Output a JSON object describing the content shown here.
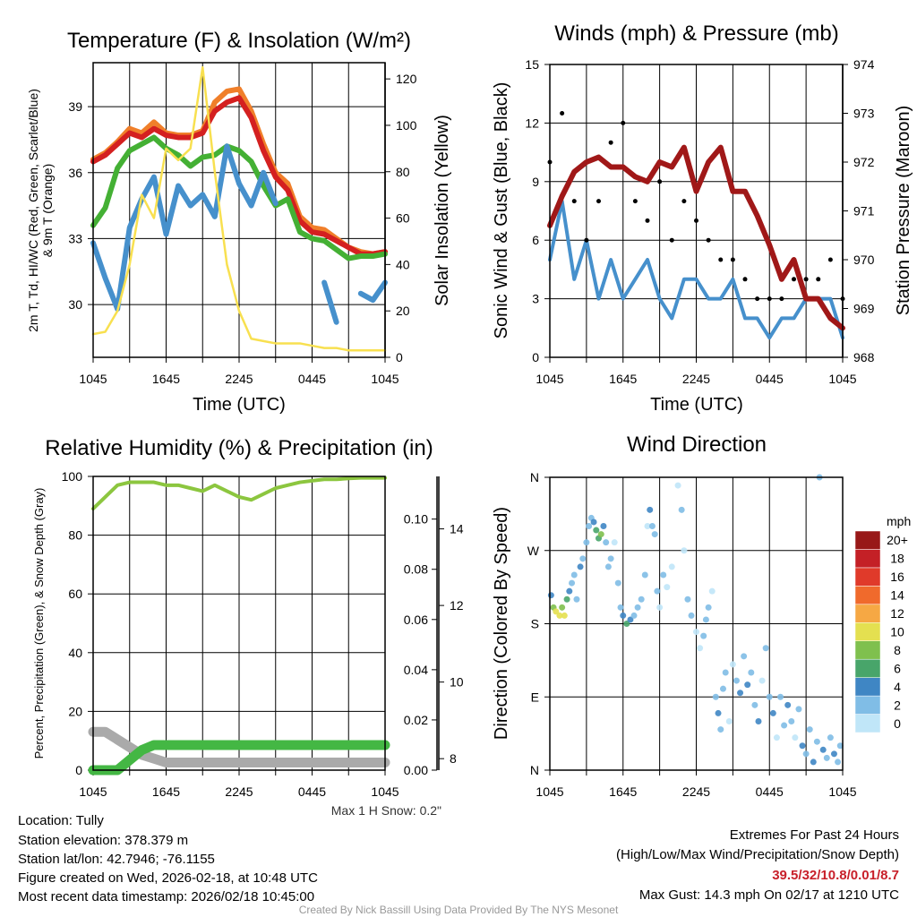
{
  "chart_data": [
    {
      "id": "temperature",
      "type": "line",
      "title": "Temperature (F) & Insolation (W/m²)",
      "ylabel": "2m T, Td, HI/WC (Red, Green, Scarlet/Blue)",
      "ylabel2": "& 9m T (Orange)",
      "y2label": "Solar Insolation (Yellow)",
      "xlabel": "Time (UTC)",
      "x_ticks": [
        "1045",
        "1645",
        "2245",
        "0445",
        "1045"
      ],
      "y_ticks": [
        30,
        33,
        36,
        39
      ],
      "y2_ticks": [
        0,
        20,
        40,
        60,
        80,
        100,
        120
      ],
      "ylim": [
        27.6,
        41
      ],
      "y2lim": [
        0,
        127
      ],
      "x_hours": [
        0,
        1,
        2,
        3,
        4,
        5,
        6,
        7,
        8,
        9,
        10,
        11,
        12,
        13,
        14,
        15,
        16,
        17,
        18,
        19,
        20,
        21,
        22,
        23,
        24
      ],
      "series": [
        {
          "name": "9m T",
          "color": "#f07f2a",
          "axis": "left",
          "values": [
            36.6,
            36.9,
            37.4,
            38.0,
            37.8,
            38.3,
            37.8,
            37.7,
            37.7,
            37.9,
            39.2,
            39.7,
            39.8,
            38.8,
            37.3,
            36.0,
            35.5,
            34.0,
            33.5,
            33.4,
            33.0,
            32.6,
            32.4,
            32.3,
            32.4
          ]
        },
        {
          "name": "2m T",
          "color": "#d42020",
          "axis": "left",
          "values": [
            36.5,
            36.8,
            37.3,
            37.8,
            37.6,
            38.0,
            37.7,
            37.6,
            37.6,
            37.8,
            38.8,
            39.2,
            39.4,
            38.5,
            37.0,
            35.8,
            35.2,
            33.8,
            33.3,
            33.2,
            32.9,
            32.6,
            32.3,
            32.3,
            32.4
          ]
        },
        {
          "name": "Td",
          "color": "#44b034",
          "axis": "left",
          "values": [
            33.6,
            34.4,
            36.2,
            37.0,
            37.3,
            37.6,
            37.1,
            36.8,
            36.3,
            36.7,
            36.8,
            37.2,
            37.0,
            36.5,
            35.4,
            34.5,
            34.8,
            33.3,
            33.0,
            32.9,
            32.5,
            32.1,
            32.2,
            32.2,
            32.3
          ]
        },
        {
          "name": "HI/WC",
          "color": "#4690cc",
          "axis": "left",
          "values": [
            32.8,
            31.2,
            29.8,
            33.5,
            34.8,
            35.8,
            33.2,
            35.4,
            34.5,
            35.0,
            34.0,
            37.2,
            35.5,
            34.5,
            36.0,
            34.6,
            null,
            30.8,
            null,
            31.0,
            29.2,
            null,
            30.5,
            30.2,
            31.0
          ]
        },
        {
          "name": "Solar Insolation",
          "color": "#f8e050",
          "axis": "right",
          "values": [
            10,
            11,
            20,
            40,
            70,
            60,
            90,
            85,
            90,
            125,
            80,
            40,
            20,
            8,
            7,
            6,
            6,
            6,
            5,
            4,
            4,
            3,
            3,
            3,
            3
          ]
        }
      ]
    },
    {
      "id": "winds",
      "type": "line",
      "title": "Winds (mph) & Pressure (mb)",
      "ylabel": "Sonic Wind & Gust (Blue, Black)",
      "y2label": "Station Pressure (Maroon)",
      "xlabel": "Time (UTC)",
      "x_ticks": [
        "1045",
        "1645",
        "2245",
        "0445",
        "1045"
      ],
      "y_ticks": [
        0,
        3,
        6,
        9,
        12,
        15
      ],
      "y2_ticks": [
        968,
        969,
        970,
        971,
        972,
        973,
        974
      ],
      "ylim": [
        0,
        15
      ],
      "y2lim": [
        968,
        974
      ],
      "x_hours": [
        0,
        1,
        2,
        3,
        4,
        5,
        6,
        7,
        8,
        9,
        10,
        11,
        12,
        13,
        14,
        15,
        16,
        17,
        18,
        19,
        20,
        21,
        22,
        23,
        24
      ],
      "series": [
        {
          "name": "Sonic Wind",
          "color": "#4690cc",
          "axis": "left",
          "values": [
            5,
            8,
            4,
            6,
            3,
            5,
            3,
            4,
            5,
            3,
            2,
            4,
            4,
            3,
            3,
            4,
            2,
            2,
            1,
            2,
            2,
            3,
            3,
            3,
            1
          ]
        },
        {
          "name": "Gust",
          "color": "#000000",
          "axis": "left",
          "style": "dots",
          "values": [
            10,
            12.5,
            8,
            6,
            8,
            11,
            12,
            8,
            7,
            9,
            6,
            8,
            7,
            6,
            5,
            5,
            4,
            3,
            3,
            3,
            4,
            4,
            4,
            5,
            3
          ]
        },
        {
          "name": "Station Pressure",
          "color": "#a01818",
          "axis": "right",
          "values": [
            970.7,
            971.3,
            971.8,
            972.0,
            972.1,
            971.9,
            971.9,
            971.7,
            971.6,
            972.0,
            971.9,
            972.3,
            971.4,
            972.0,
            972.3,
            971.4,
            971.4,
            970.9,
            970.3,
            969.6,
            970.0,
            969.2,
            969.2,
            968.8,
            968.6
          ]
        }
      ]
    },
    {
      "id": "humidity",
      "type": "line",
      "title": "Relative Humidity (%) & Precipitation (in)",
      "ylabel": "Percent, Precipitation (Green), & Snow Depth (Gray)",
      "xlabel": "",
      "x_ticks": [
        "1045",
        "1645",
        "2245",
        "0445",
        "1045"
      ],
      "y_ticks": [
        0,
        20,
        40,
        60,
        80,
        100
      ],
      "precip_ticks": [
        "0.00",
        "0.02",
        "0.04",
        "0.06",
        "0.08",
        "0.10"
      ],
      "snow_ticks": [
        8,
        10,
        12,
        14
      ],
      "ylim": [
        0,
        100
      ],
      "precip_lim": [
        0,
        0.117
      ],
      "snow_lim": [
        7.7,
        15.37
      ],
      "annotation": "Max 1 H Snow: 0.2\"",
      "x_hours": [
        0,
        1,
        2,
        3,
        4,
        5,
        6,
        7,
        8,
        9,
        10,
        11,
        12,
        13,
        14,
        15,
        16,
        17,
        18,
        19,
        20,
        21,
        22,
        23,
        24
      ],
      "series": [
        {
          "name": "Snow Depth",
          "color": "#aaaaaa",
          "axis": "snow",
          "values": [
            8.7,
            8.7,
            8.5,
            8.3,
            8.1,
            8.0,
            7.9,
            7.9,
            7.9,
            7.9,
            7.9,
            7.9,
            7.9,
            7.9,
            7.9,
            7.9,
            7.9,
            7.9,
            7.9,
            7.9,
            7.9,
            7.9,
            7.9,
            7.9,
            7.9
          ]
        },
        {
          "name": "Precipitation",
          "color": "#44b744",
          "axis": "precip",
          "values": [
            0,
            0,
            0,
            0.004,
            0.008,
            0.01,
            0.01,
            0.01,
            0.01,
            0.01,
            0.01,
            0.01,
            0.01,
            0.01,
            0.01,
            0.01,
            0.01,
            0.01,
            0.01,
            0.01,
            0.01,
            0.01,
            0.01,
            0.01,
            0.01
          ]
        },
        {
          "name": "Relative Humidity",
          "color": "#8cc63f",
          "axis": "left",
          "values": [
            89,
            93,
            97,
            98,
            98,
            98,
            97,
            97,
            96,
            95,
            97,
            95,
            93,
            92,
            94,
            96,
            97,
            98,
            98.5,
            99,
            99,
            99.3,
            99.5,
            99.5,
            99.5
          ]
        }
      ]
    },
    {
      "id": "direction",
      "type": "scatter",
      "title": "Wind Direction",
      "ylabel": "Direction (Colored By Speed)",
      "x_ticks": [
        "1045",
        "1645",
        "2245",
        "0445",
        "1045"
      ],
      "y_tick_labels": [
        "N",
        "E",
        "S",
        "W",
        "N"
      ],
      "ylim": [
        0,
        360
      ],
      "colorbar_title": "mph",
      "colorbar": [
        {
          "label": "0",
          "color": "#c0e6f8"
        },
        {
          "label": "2",
          "color": "#80bde6"
        },
        {
          "label": "4",
          "color": "#3f86c4"
        },
        {
          "label": "6",
          "color": "#48a56a"
        },
        {
          "label": "8",
          "color": "#7fc04e"
        },
        {
          "label": "10",
          "color": "#e4e050"
        },
        {
          "label": "12",
          "color": "#f6a844"
        },
        {
          "label": "14",
          "color": "#f06a2c"
        },
        {
          "label": "16",
          "color": "#e03a2a"
        },
        {
          "label": "18",
          "color": "#c42026"
        },
        {
          "label": "20+",
          "color": "#981818"
        }
      ],
      "points": [
        [
          0.1,
          215,
          4
        ],
        [
          0.3,
          200,
          8
        ],
        [
          0.5,
          195,
          10
        ],
        [
          0.8,
          190,
          11
        ],
        [
          1.0,
          200,
          9
        ],
        [
          1.2,
          190,
          10
        ],
        [
          1.4,
          210,
          6
        ],
        [
          1.6,
          220,
          4
        ],
        [
          1.8,
          230,
          3
        ],
        [
          2.0,
          240,
          2
        ],
        [
          2.2,
          210,
          2
        ],
        [
          2.5,
          250,
          4
        ],
        [
          2.7,
          260,
          3
        ],
        [
          3.0,
          280,
          3
        ],
        [
          3.2,
          300,
          2
        ],
        [
          3.4,
          310,
          3
        ],
        [
          3.6,
          305,
          4
        ],
        [
          3.8,
          295,
          6
        ],
        [
          4.0,
          285,
          7
        ],
        [
          4.2,
          290,
          8
        ],
        [
          4.4,
          300,
          4
        ],
        [
          4.6,
          280,
          3
        ],
        [
          4.8,
          250,
          2
        ],
        [
          5.0,
          260,
          3
        ],
        [
          5.3,
          280,
          1
        ],
        [
          5.6,
          230,
          2
        ],
        [
          5.8,
          200,
          3
        ],
        [
          6.0,
          190,
          5
        ],
        [
          6.3,
          180,
          6
        ],
        [
          6.6,
          185,
          4
        ],
        [
          6.9,
          190,
          3
        ],
        [
          7.2,
          200,
          2
        ],
        [
          7.5,
          210,
          3
        ],
        [
          7.8,
          240,
          2
        ],
        [
          8.0,
          300,
          1
        ],
        [
          8.2,
          320,
          4
        ],
        [
          8.4,
          300,
          3
        ],
        [
          8.6,
          290,
          2
        ],
        [
          8.8,
          220,
          2
        ],
        [
          9.0,
          200,
          1
        ],
        [
          9.3,
          240,
          2
        ],
        [
          9.6,
          225,
          1
        ],
        [
          10.0,
          250,
          1
        ],
        [
          10.5,
          350,
          1
        ],
        [
          10.8,
          320,
          2
        ],
        [
          11.0,
          270,
          1
        ],
        [
          11.3,
          210,
          2
        ],
        [
          11.6,
          190,
          2
        ],
        [
          12.0,
          170,
          1
        ],
        [
          12.3,
          150,
          1
        ],
        [
          12.6,
          165,
          2
        ],
        [
          12.8,
          185,
          3
        ],
        [
          13.0,
          200,
          2
        ],
        [
          13.3,
          220,
          1
        ],
        [
          13.6,
          90,
          2
        ],
        [
          13.8,
          70,
          4
        ],
        [
          14.0,
          50,
          2
        ],
        [
          14.2,
          100,
          3
        ],
        [
          14.4,
          120,
          2
        ],
        [
          14.7,
          60,
          1
        ],
        [
          15.0,
          130,
          1
        ],
        [
          15.3,
          110,
          3
        ],
        [
          15.6,
          95,
          4
        ],
        [
          15.9,
          140,
          3
        ],
        [
          16.2,
          105,
          4
        ],
        [
          16.5,
          120,
          2
        ],
        [
          16.8,
          80,
          3
        ],
        [
          17.1,
          60,
          4
        ],
        [
          17.4,
          110,
          1
        ],
        [
          17.7,
          150,
          2
        ],
        [
          18.0,
          90,
          3
        ],
        [
          18.3,
          70,
          4
        ],
        [
          18.6,
          40,
          1
        ],
        [
          18.9,
          90,
          2
        ],
        [
          19.2,
          55,
          3
        ],
        [
          19.5,
          80,
          4
        ],
        [
          19.8,
          60,
          2
        ],
        [
          20.1,
          40,
          1
        ],
        [
          20.4,
          75,
          3
        ],
        [
          20.7,
          30,
          4
        ],
        [
          21.0,
          20,
          2
        ],
        [
          21.3,
          50,
          3
        ],
        [
          21.6,
          10,
          4
        ],
        [
          21.9,
          35,
          2
        ],
        [
          22.1,
          360,
          3
        ],
        [
          22.4,
          25,
          4
        ],
        [
          22.7,
          15,
          3
        ],
        [
          23.0,
          40,
          2
        ],
        [
          23.3,
          20,
          4
        ],
        [
          23.6,
          10,
          3
        ],
        [
          23.8,
          30,
          2
        ]
      ]
    }
  ],
  "footer": {
    "location": "Location: Tully",
    "elevation": "Station elevation: 378.379 m",
    "latlon": "Station lat/lon: 42.7946; -76.1155",
    "created": "Figure created on Wed, 2026-02-18, at 10:48 UTC",
    "recent": "Most recent data timestamp: 2026/02/18 10:45:00",
    "extremes_title": "Extremes For Past 24 Hours",
    "extremes_legend": "(High/Low/Max Wind/Precipitation/Snow Depth)",
    "extremes_values": "39.5/32/10.8/0.01/8.7",
    "extremes_color": "#c8202a",
    "max_gust": "Max Gust: 14.3 mph On 02/17 at 1210 UTC",
    "credit": "Created By Nick Bassill Using Data Provided By The NYS Mesonet"
  }
}
